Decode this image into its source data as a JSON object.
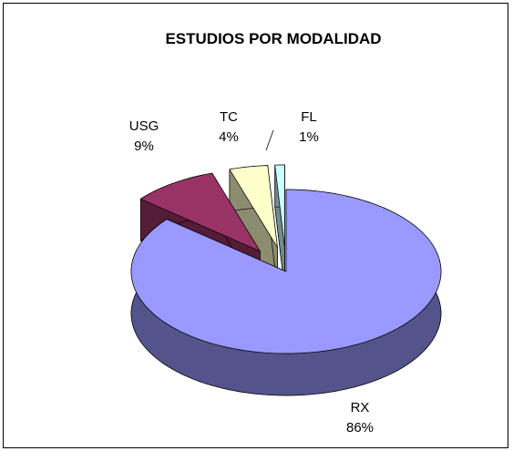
{
  "chart_data": {
    "type": "pie",
    "title": "ESTUDIOS POR MODALIDAD",
    "categories": [
      "RX",
      "USG",
      "TC",
      "FL"
    ],
    "values": [
      86,
      9,
      4,
      1
    ],
    "value_labels": [
      "86%",
      "9%",
      "4%",
      "1%"
    ],
    "colors": [
      "#9999ff",
      "#993366",
      "#ffffcc",
      "#ccffff"
    ],
    "legend": false
  }
}
